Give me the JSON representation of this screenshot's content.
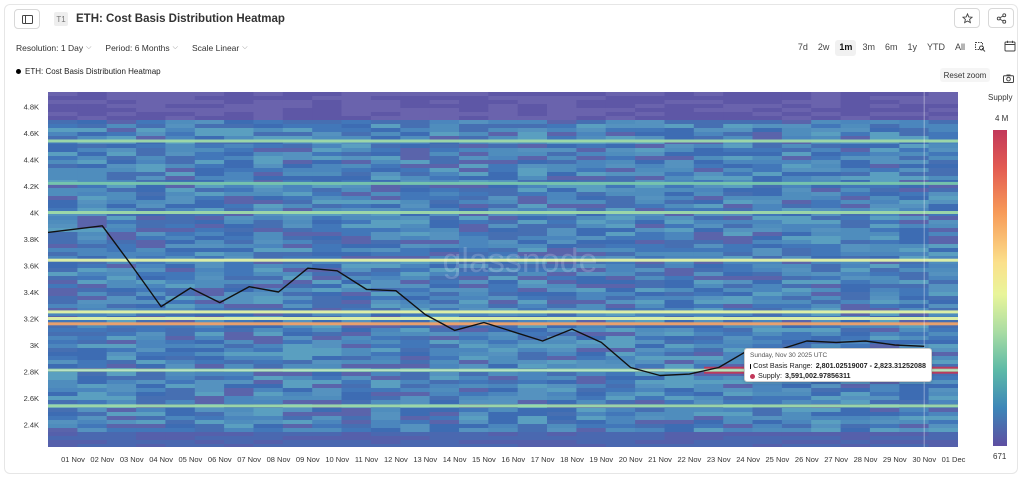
{
  "header": {
    "badge": "T1",
    "title": "ETH: Cost Basis Distribution Heatmap"
  },
  "toolbar": {
    "resolution": "Resolution: 1 Day",
    "period": "Period: 6 Months",
    "scale": "Scale Linear"
  },
  "ranges": [
    "7d",
    "2w",
    "1m",
    "3m",
    "6m",
    "1y",
    "YTD",
    "All"
  ],
  "active_range": "1m",
  "legend_label": "ETH: Cost Basis Distribution Heatmap",
  "reset_zoom": "Reset zoom",
  "watermark": "glassnode",
  "colorbar": {
    "title": "Supply",
    "max_label": "4 M",
    "min_label": "671"
  },
  "tooltip": {
    "date": "Sunday, Nov 30 2025 UTC",
    "range_label": "Cost Basis Range:",
    "range_value": "2,801.02519007 - 2,823.31252088",
    "supply_label": "Supply:",
    "supply_value": "3,591,002.97856311",
    "range_color": "#000000",
    "supply_color": "#c2385a"
  },
  "chart_data": {
    "type": "heatmap",
    "title": "ETH: Cost Basis Distribution Heatmap",
    "x_labels": [
      "01 Nov",
      "02 Nov",
      "03 Nov",
      "04 Nov",
      "05 Nov",
      "06 Nov",
      "07 Nov",
      "08 Nov",
      "09 Nov",
      "10 Nov",
      "11 Nov",
      "12 Nov",
      "13 Nov",
      "14 Nov",
      "15 Nov",
      "16 Nov",
      "17 Nov",
      "18 Nov",
      "19 Nov",
      "20 Nov",
      "21 Nov",
      "22 Nov",
      "23 Nov",
      "24 Nov",
      "25 Nov",
      "26 Nov",
      "27 Nov",
      "28 Nov",
      "29 Nov",
      "30 Nov",
      "01 Dec"
    ],
    "y_ticks": [
      2400,
      2600,
      2800,
      3000,
      3200,
      3400,
      3600,
      3800,
      4000,
      4200,
      4400,
      4600,
      4800
    ],
    "y_tick_labels": [
      "2.4K",
      "2.6K",
      "2.8K",
      "3K",
      "3.2K",
      "3.4K",
      "3.6K",
      "3.8K",
      "4K",
      "4.2K",
      "4.4K",
      "4.6K",
      "4.8K"
    ],
    "ylim": [
      2230,
      4910
    ],
    "price_series": {
      "name": "ETH: Cost Basis Distribution Heatmap",
      "x": [
        "31 Oct",
        "02 Nov",
        "03 Nov",
        "04 Nov",
        "05 Nov",
        "06 Nov",
        "07 Nov",
        "08 Nov",
        "09 Nov",
        "10 Nov",
        "11 Nov",
        "12 Nov",
        "13 Nov",
        "14 Nov",
        "15 Nov",
        "16 Nov",
        "17 Nov",
        "18 Nov",
        "19 Nov",
        "20 Nov",
        "21 Nov",
        "22 Nov",
        "23 Nov",
        "24 Nov",
        "25 Nov",
        "26 Nov",
        "27 Nov",
        "28 Nov",
        "29 Nov",
        "30 Nov"
      ],
      "values": [
        3850,
        3900,
        3600,
        3290,
        3430,
        3320,
        3440,
        3400,
        3580,
        3560,
        3420,
        3410,
        3230,
        3110,
        3170,
        3100,
        3030,
        3120,
        3020,
        2830,
        2770,
        2780,
        2830,
        2960,
        2960,
        3030,
        3020,
        3030,
        3000,
        2990
      ]
    },
    "hot_bands": [
      {
        "price": 2810,
        "supply_level": 1.0,
        "from": "23 Nov",
        "to": "30 Nov"
      },
      {
        "price": 3160,
        "supply_level": 0.75
      },
      {
        "price": 3200,
        "supply_level": 0.45
      },
      {
        "price": 3250,
        "supply_level": 0.5
      },
      {
        "price": 3640,
        "supply_level": 0.45
      },
      {
        "price": 4000,
        "supply_level": 0.35
      },
      {
        "price": 4540,
        "supply_level": 0.4
      },
      {
        "price": 2810,
        "supply_level": 0.4
      },
      {
        "price": 2540,
        "supply_level": 0.3
      },
      {
        "price": 4220,
        "supply_level": 0.25
      }
    ],
    "colorbar_range": [
      671,
      4000000
    ]
  }
}
